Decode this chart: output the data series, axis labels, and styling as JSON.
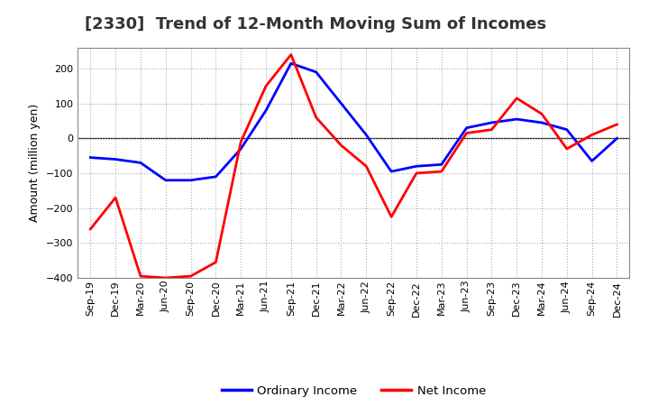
{
  "title": "[2330]  Trend of 12-Month Moving Sum of Incomes",
  "ylabel": "Amount (million yen)",
  "ylim": [
    -400,
    260
  ],
  "yticks": [
    -400,
    -300,
    -200,
    -100,
    0,
    100,
    200
  ],
  "background_color": "#ffffff",
  "grid_color": "#aaaaaa",
  "ordinary_income_color": "#0000ff",
  "net_income_color": "#ff0000",
  "x_labels": [
    "Sep-19",
    "Dec-19",
    "Mar-20",
    "Jun-20",
    "Sep-20",
    "Dec-20",
    "Mar-21",
    "Jun-21",
    "Sep-21",
    "Dec-21",
    "Mar-22",
    "Jun-22",
    "Sep-22",
    "Dec-22",
    "Mar-23",
    "Jun-23",
    "Sep-23",
    "Dec-23",
    "Mar-24",
    "Jun-24",
    "Sep-24",
    "Dec-24"
  ],
  "ordinary_income": [
    -55,
    -60,
    -70,
    -120,
    -120,
    -110,
    -30,
    80,
    215,
    190,
    100,
    10,
    -95,
    -80,
    -75,
    30,
    45,
    55,
    45,
    25,
    -65,
    0
  ],
  "net_income": [
    -260,
    -170,
    -395,
    -400,
    -395,
    -355,
    -10,
    150,
    240,
    60,
    -20,
    -80,
    -225,
    -100,
    -95,
    15,
    25,
    115,
    70,
    -30,
    10,
    40
  ],
  "legend_labels": [
    "Ordinary Income",
    "Net Income"
  ],
  "line_width": 2.0,
  "title_fontsize": 13,
  "ylabel_fontsize": 9,
  "tick_fontsize": 8
}
